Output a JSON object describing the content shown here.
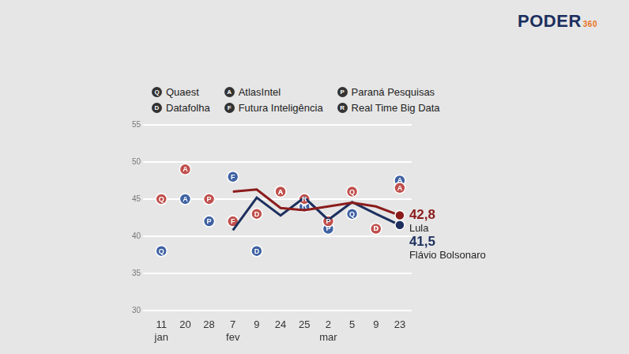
{
  "header": {
    "brand": "PODER",
    "brand_suffix": "360"
  },
  "chart_data": {
    "type": "line",
    "categories": [
      [
        "11",
        "jan"
      ],
      "20",
      "28",
      [
        "7",
        "fev"
      ],
      "9",
      "24",
      "25",
      [
        "2",
        "mar"
      ],
      "5",
      "9",
      "23"
    ],
    "ylim": [
      30,
      55
    ],
    "yticks": [
      30,
      35,
      40,
      45,
      50,
      55
    ],
    "grid": true,
    "institutes": [
      {
        "letter": "Q",
        "name": "Quaest"
      },
      {
        "letter": "D",
        "name": "Datafolha"
      },
      {
        "letter": "A",
        "name": "AtlasIntel"
      },
      {
        "letter": "F",
        "name": "Futura Inteligência"
      },
      {
        "letter": "P",
        "name": "Paraná Pesquisas"
      },
      {
        "letter": "R",
        "name": "Real Time Big Data"
      }
    ],
    "series": [
      {
        "name": "Lula",
        "type": "line",
        "color": "#8c1c1c",
        "values": [
          null,
          null,
          null,
          46,
          46.3,
          43.8,
          43.5,
          44,
          44.5,
          44,
          42.8
        ],
        "value_labels": [
          null,
          null,
          null,
          null,
          null,
          null,
          null,
          null,
          null,
          null,
          "42,8"
        ]
      },
      {
        "name": "Flávio Bolsonaro",
        "type": "line",
        "color": "#1c2f5e",
        "values": [
          null,
          null,
          null,
          40.8,
          45.2,
          42.8,
          45.2,
          42.2,
          44.6,
          43,
          41.5
        ],
        "value_labels": [
          null,
          null,
          null,
          null,
          null,
          null,
          null,
          null,
          null,
          null,
          "41,5"
        ]
      },
      {
        "type": "scatter",
        "color": "#c0504d",
        "values": [
          45,
          49,
          45,
          42,
          43,
          46,
          45,
          42,
          46,
          41,
          46.5
        ],
        "institutes": [
          "Q",
          "A",
          "P",
          "F",
          "D",
          "A",
          "R",
          "P",
          "Q",
          "D",
          "A"
        ]
      },
      {
        "type": "scatter",
        "color": "#3f62a3",
        "values": [
          38,
          45,
          42,
          48,
          38,
          46,
          44,
          41,
          43,
          41,
          47.5
        ],
        "institutes": [
          "Q",
          "A",
          "P",
          "F",
          "D",
          "A",
          "R",
          "P",
          "Q",
          "D",
          "A"
        ]
      }
    ]
  }
}
